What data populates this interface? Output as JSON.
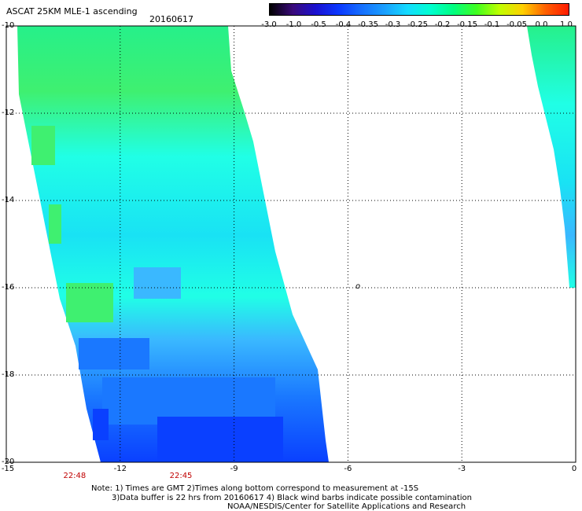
{
  "header": {
    "title": "ASCAT 25KM MLE-1 ascending",
    "date": "20160617"
  },
  "colorbar": {
    "labels": [
      "-3.0",
      "-1.0",
      "-0.5",
      "-0.4",
      "-0.35",
      "-0.3",
      "-0.25",
      "-0.2",
      "-0.15",
      "-0.1",
      "-0.05",
      "0.0",
      "1.0"
    ],
    "colors": [
      "#000000",
      "#3a0a7a",
      "#1a10d0",
      "#0b38ff",
      "#1670ff",
      "#1aa0ff",
      "#14dcff",
      "#00ffd0",
      "#00ff80",
      "#40ff20",
      "#c0ff00",
      "#ffd000",
      "#ff6000",
      "#ff1a00"
    ]
  },
  "map": {
    "lat_labels": [
      "-10",
      "-12",
      "-14",
      "-16",
      "-18",
      "-20"
    ],
    "lon_labels": [
      "-15",
      "-12",
      "-9",
      "-6",
      "-3",
      "0"
    ],
    "lat_range": [
      -20,
      -10
    ],
    "lon_range": [
      -15,
      0
    ],
    "grid": true,
    "time_labels": [
      {
        "text": "22:48",
        "lon": -13.2
      },
      {
        "text": "22:45",
        "lon": -10.4
      }
    ],
    "marker": "o",
    "swath_colors": {
      "green": "#26f08a",
      "light_green": "#3ff070",
      "cyan": "#20ffe6",
      "aqua": "#19e2f4",
      "sky": "#3ab8ff",
      "blue": "#1a78ff",
      "deep_blue": "#0a40ff"
    }
  },
  "notes": {
    "line1": "Note: 1) Times are GMT 2)Times along bottom correspond to measurement at -15S",
    "line2": "3)Data buffer is 22 hrs from 20160617 4) Black wind barbs indicate possible contamination",
    "line3": "NOAA/NESDIS/Center for Satellite Applications and Research"
  }
}
